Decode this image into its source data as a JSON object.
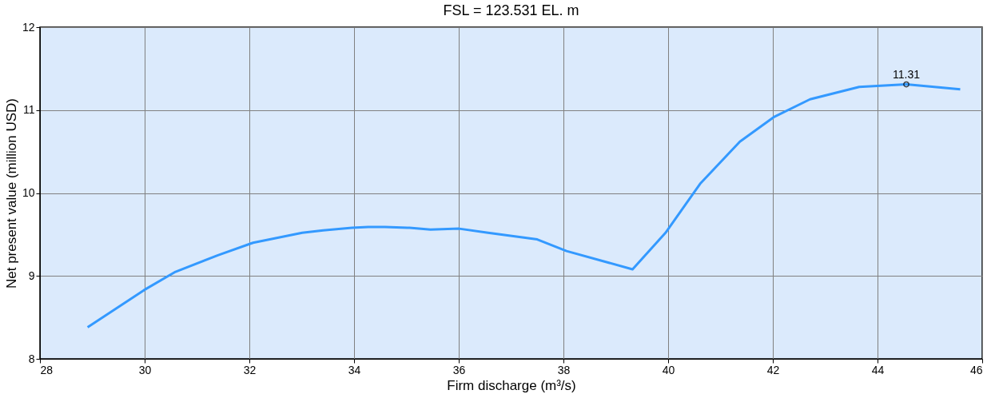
{
  "chart_data": {
    "type": "line",
    "title": "FSL = 123.531 EL. m",
    "xlabel": "Firm discharge (m³/s)",
    "ylabel": "Net present value (million USD)",
    "x": [
      28.91,
      29.99,
      30.59,
      31.4,
      32.07,
      32.54,
      33.01,
      33.41,
      33.96,
      34.27,
      34.59,
      35.06,
      35.46,
      36.01,
      36.56,
      37.5,
      38.06,
      39.32,
      39.95,
      40.61,
      41.37,
      42.03,
      42.71,
      43.65,
      44.55,
      45.58
    ],
    "series": [
      {
        "color": "#3399ff",
        "values": [
          8.38,
          8.83,
          9.05,
          9.25,
          9.4,
          9.46,
          9.52,
          9.55,
          9.58,
          9.59,
          9.59,
          9.58,
          9.56,
          9.57,
          9.52,
          9.44,
          9.3,
          9.08,
          9.52,
          10.11,
          10.62,
          10.92,
          11.13,
          11.28,
          11.31,
          11.25
        ]
      }
    ],
    "annotations": [
      {
        "text": "11.31",
        "x": 44.55,
        "y": 11.31
      }
    ],
    "xlim": [
      28,
      46
    ],
    "xticks": [
      28,
      30,
      32,
      34,
      36,
      38,
      40,
      42,
      44,
      46
    ],
    "ylim": [
      8,
      12
    ],
    "yticks": [
      8,
      9,
      10,
      11,
      12
    ],
    "grid": true,
    "marker": "none",
    "line_style": "solid"
  }
}
